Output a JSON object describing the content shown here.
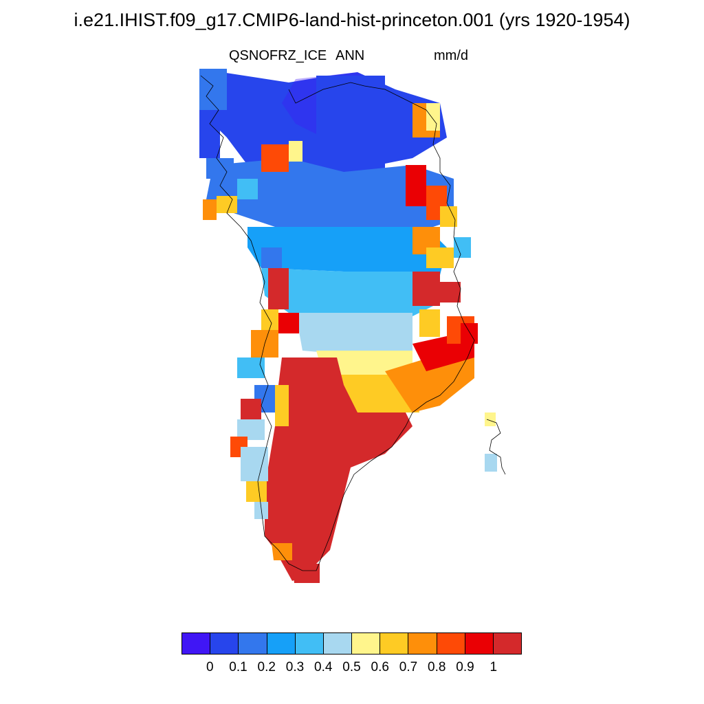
{
  "title": "i.e21.IHIST.f09_g17.CMIP6-land-hist-princeton.001 (yrs 1920-1954)",
  "variable": "QSNOFRZ_ICE",
  "season": "ANN",
  "units": "mm/d",
  "colorbar": {
    "colors": [
      "#4016f5",
      "#2745ec",
      "#3377ed",
      "#16a0f8",
      "#41bef5",
      "#a8d8f0",
      "#fff58c",
      "#fecb24",
      "#fe8f0a",
      "#fe4a06",
      "#ea0004",
      "#d4292b"
    ],
    "labels": [
      "0",
      "0.1",
      "0.2",
      "0.3",
      "0.4",
      "0.5",
      "0.6",
      "0.7",
      "0.8",
      "0.9",
      "1"
    ]
  }
}
